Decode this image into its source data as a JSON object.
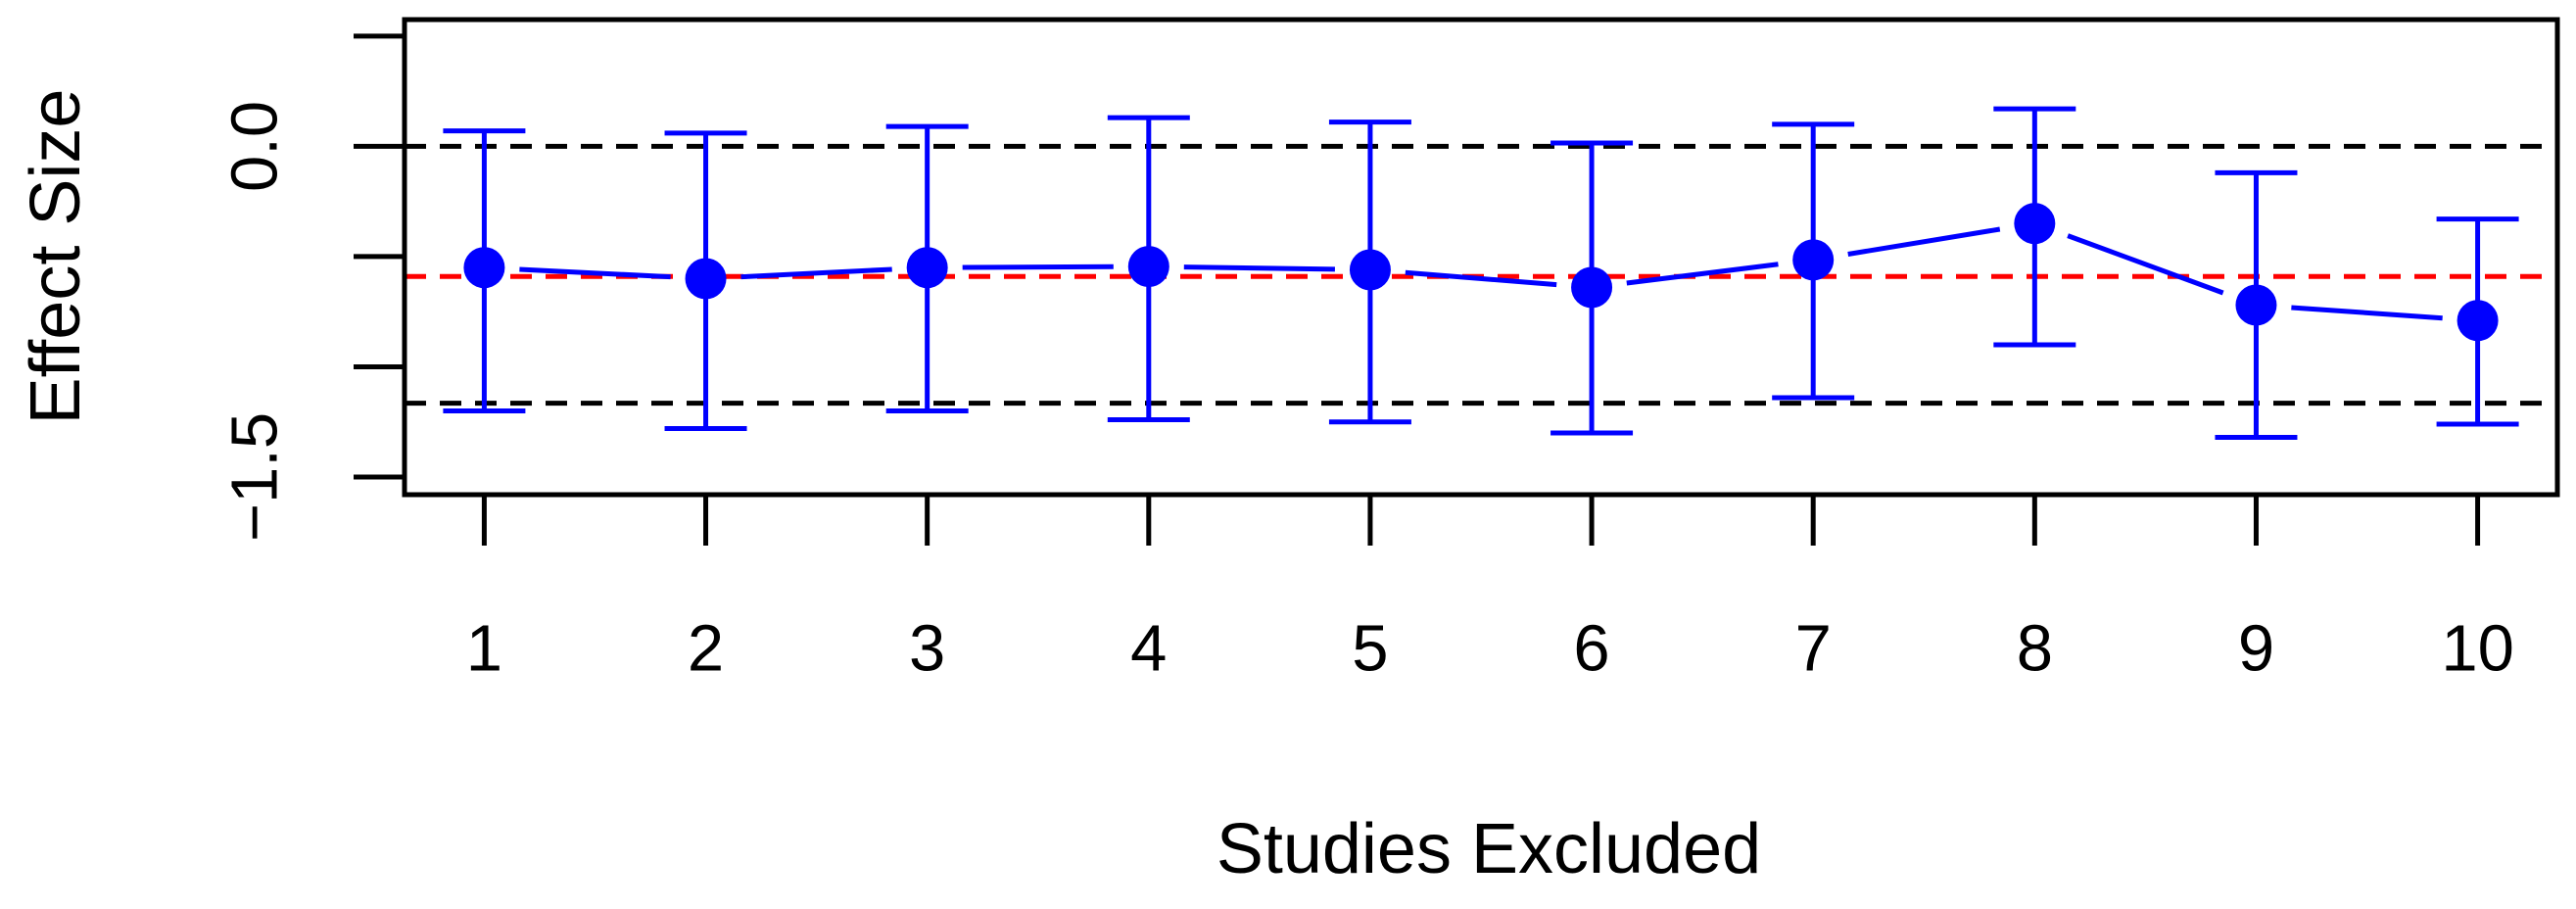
{
  "chart_data": {
    "type": "errorbar",
    "x_label": "Studies Excluded",
    "y_label": "Effect Size",
    "x": [
      1,
      2,
      3,
      4,
      5,
      6,
      7,
      8,
      9,
      10
    ],
    "values": [
      -0.55,
      -0.6,
      -0.55,
      -0.545,
      -0.56,
      -0.64,
      -0.515,
      -0.35,
      -0.72,
      -0.79
    ],
    "lower": [
      -1.2,
      -1.28,
      -1.2,
      -1.24,
      -1.25,
      -1.3,
      -1.14,
      -0.9,
      -1.32,
      -1.26
    ],
    "upper": [
      0.07,
      0.06,
      0.09,
      0.13,
      0.11,
      0.015,
      0.1,
      0.17,
      -0.12,
      -0.33
    ],
    "color": "#0000ff",
    "xlim": [
      0.64,
      10.36
    ],
    "ylim": [
      -1.58,
      0.575
    ],
    "xticks": [
      1,
      2,
      3,
      4,
      5,
      6,
      7,
      8,
      9,
      10
    ],
    "yticks": [
      {
        "value": 0,
        "label": "0.0"
      },
      {
        "value": -1.5,
        "label": "−1.5"
      }
    ],
    "yminor": [
      0.5,
      -0.5,
      -1.0
    ],
    "hlines": [
      {
        "value": 0,
        "color": "#000000"
      },
      {
        "value": -1.165,
        "color": "#000000"
      },
      {
        "value": -0.59,
        "color": "#ff0000"
      }
    ]
  }
}
